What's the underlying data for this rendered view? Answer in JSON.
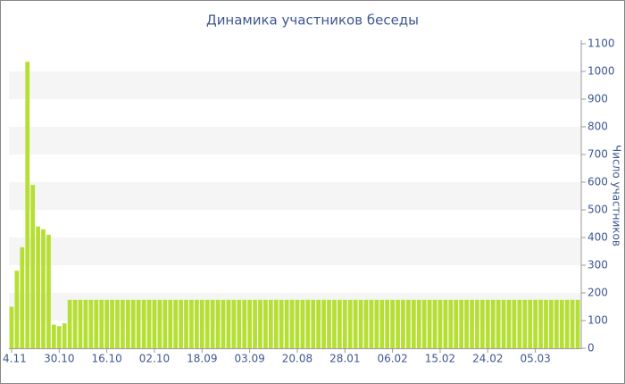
{
  "chart_data": {
    "type": "bar",
    "title": "Динамика участников беседы",
    "y_axis_label": "Число участников",
    "categories": [
      "4.11",
      null,
      null,
      null,
      null,
      null,
      null,
      null,
      null,
      "30.10",
      null,
      null,
      null,
      null,
      null,
      null,
      null,
      null,
      "16.10",
      null,
      null,
      null,
      null,
      null,
      null,
      null,
      null,
      "02.10",
      null,
      null,
      null,
      null,
      null,
      null,
      null,
      null,
      "18.09",
      null,
      null,
      null,
      null,
      null,
      null,
      null,
      null,
      "03.09",
      null,
      null,
      null,
      null,
      null,
      null,
      null,
      null,
      "20.08",
      null,
      null,
      null,
      null,
      null,
      null,
      null,
      null,
      "28.01",
      null,
      null,
      null,
      null,
      null,
      null,
      null,
      null,
      "06.02",
      null,
      null,
      null,
      null,
      null,
      null,
      null,
      null,
      "15.02",
      null,
      null,
      null,
      null,
      null,
      null,
      null,
      null,
      "24.02",
      null,
      null,
      null,
      null,
      null,
      null,
      null,
      null,
      "05.03",
      null,
      null,
      null,
      null,
      null,
      null,
      null,
      null
    ],
    "values": [
      150,
      280,
      365,
      1035,
      590,
      440,
      430,
      410,
      85,
      80,
      90,
      175,
      175,
      175,
      175,
      175,
      175,
      175,
      175,
      175,
      175,
      175,
      175,
      175,
      175,
      175,
      175,
      175,
      175,
      175,
      175,
      175,
      175,
      175,
      175,
      175,
      175,
      175,
      175,
      175,
      175,
      175,
      175,
      175,
      175,
      175,
      175,
      175,
      175,
      175,
      175,
      175,
      175,
      175,
      175,
      175,
      175,
      175,
      175,
      175,
      175,
      175,
      175,
      175,
      175,
      175,
      175,
      175,
      175,
      175,
      175,
      175,
      175,
      175,
      175,
      175,
      175,
      175,
      175,
      175,
      175,
      175,
      175,
      175,
      175,
      175,
      175,
      175,
      175,
      175,
      175,
      175,
      175,
      175,
      175,
      175,
      175,
      175,
      175,
      175,
      175,
      175,
      175,
      175,
      175,
      175,
      175,
      175
    ],
    "color": "#b6df34",
    "ylim": [
      0,
      1100
    ],
    "yticks": [
      0,
      100,
      200,
      300,
      400,
      500,
      600,
      700,
      800,
      900,
      1000,
      1100
    ],
    "grid": "bands",
    "y_axis_side": "right"
  }
}
